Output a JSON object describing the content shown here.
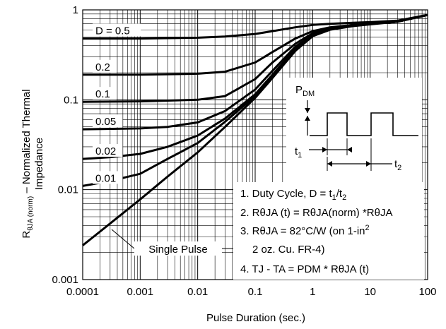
{
  "chart_data": {
    "type": "line",
    "xlabel": "Pulse Duration (sec.)",
    "ylabel_line1": "Normalized Thermal",
    "ylabel_line2": "Impedance",
    "x_scale": "log",
    "y_scale": "log",
    "xlim": [
      0.0001,
      100
    ],
    "ylim": [
      0.001,
      1
    ],
    "grid": true,
    "x_tick_labels": [
      "0.0001",
      "0.001",
      "0.01",
      "0.1",
      "1",
      "10",
      "100"
    ],
    "y_tick_labels": [
      "1",
      "0.1",
      "0.01",
      "0.001"
    ],
    "series": [
      {
        "name": "D = 0.5",
        "points": [
          [
            0.0001,
            0.48
          ],
          [
            0.001,
            0.48
          ],
          [
            0.01,
            0.49
          ],
          [
            0.03,
            0.505
          ],
          [
            0.1,
            0.54
          ],
          [
            0.2,
            0.58
          ],
          [
            0.5,
            0.64
          ],
          [
            1,
            0.68
          ],
          [
            2,
            0.7
          ],
          [
            5,
            0.72
          ],
          [
            10,
            0.73
          ],
          [
            30,
            0.76
          ],
          [
            100,
            0.88
          ]
        ]
      },
      {
        "name": "0.2",
        "points": [
          [
            0.0001,
            0.19
          ],
          [
            0.001,
            0.19
          ],
          [
            0.01,
            0.195
          ],
          [
            0.03,
            0.205
          ],
          [
            0.1,
            0.26
          ],
          [
            0.2,
            0.34
          ],
          [
            0.5,
            0.48
          ],
          [
            1,
            0.58
          ],
          [
            2,
            0.64
          ],
          [
            5,
            0.68
          ],
          [
            10,
            0.7
          ],
          [
            30,
            0.74
          ],
          [
            100,
            0.88
          ]
        ]
      },
      {
        "name": "0.1",
        "points": [
          [
            0.0001,
            0.095
          ],
          [
            0.001,
            0.096
          ],
          [
            0.01,
            0.1
          ],
          [
            0.03,
            0.11
          ],
          [
            0.1,
            0.17
          ],
          [
            0.2,
            0.26
          ],
          [
            0.5,
            0.42
          ],
          [
            1,
            0.55
          ],
          [
            2,
            0.63
          ],
          [
            5,
            0.68
          ],
          [
            10,
            0.7
          ],
          [
            30,
            0.74
          ],
          [
            100,
            0.88
          ]
        ]
      },
      {
        "name": "0.05",
        "points": [
          [
            0.0001,
            0.047
          ],
          [
            0.001,
            0.048
          ],
          [
            0.003,
            0.05
          ],
          [
            0.01,
            0.056
          ],
          [
            0.03,
            0.075
          ],
          [
            0.1,
            0.13
          ],
          [
            0.2,
            0.21
          ],
          [
            0.5,
            0.39
          ],
          [
            1,
            0.53
          ],
          [
            2,
            0.62
          ],
          [
            5,
            0.67
          ],
          [
            10,
            0.7
          ],
          [
            30,
            0.74
          ],
          [
            100,
            0.88
          ]
        ]
      },
      {
        "name": "0.02",
        "points": [
          [
            0.0001,
            0.022
          ],
          [
            0.0003,
            0.023
          ],
          [
            0.001,
            0.025
          ],
          [
            0.003,
            0.03
          ],
          [
            0.01,
            0.04
          ],
          [
            0.03,
            0.062
          ],
          [
            0.1,
            0.115
          ],
          [
            0.2,
            0.19
          ],
          [
            0.5,
            0.37
          ],
          [
            1,
            0.52
          ],
          [
            2,
            0.61
          ],
          [
            5,
            0.67
          ],
          [
            10,
            0.7
          ],
          [
            30,
            0.74
          ],
          [
            100,
            0.88
          ]
        ]
      },
      {
        "name": "0.01",
        "points": [
          [
            0.0001,
            0.011
          ],
          [
            0.0003,
            0.0125
          ],
          [
            0.001,
            0.015
          ],
          [
            0.003,
            0.022
          ],
          [
            0.01,
            0.033
          ],
          [
            0.03,
            0.057
          ],
          [
            0.1,
            0.11
          ],
          [
            0.2,
            0.18
          ],
          [
            0.5,
            0.36
          ],
          [
            1,
            0.52
          ],
          [
            2,
            0.61
          ],
          [
            5,
            0.67
          ],
          [
            10,
            0.7
          ],
          [
            30,
            0.74
          ],
          [
            100,
            0.88
          ]
        ]
      },
      {
        "name": "Single Pulse",
        "points": [
          [
            0.0001,
            0.0024
          ],
          [
            0.0003,
            0.0042
          ],
          [
            0.001,
            0.0078
          ],
          [
            0.003,
            0.014
          ],
          [
            0.01,
            0.026
          ],
          [
            0.03,
            0.05
          ],
          [
            0.1,
            0.105
          ],
          [
            0.2,
            0.175
          ],
          [
            0.5,
            0.35
          ],
          [
            1,
            0.51
          ],
          [
            2,
            0.6
          ],
          [
            5,
            0.66
          ],
          [
            10,
            0.69
          ],
          [
            30,
            0.74
          ],
          [
            100,
            0.88
          ]
        ]
      }
    ],
    "inset": {
      "p_label": "P",
      "p_sub": "DM",
      "t1_label": "t",
      "t1_sub": "1",
      "t2_label": "t",
      "t2_sub": "2"
    },
    "notes": {
      "n1_a": "1. Duty Cycle, D = t",
      "n1_sub": "1",
      "n1_b": "/t",
      "n1_sub2": "2",
      "n2": "2. RθJA (t) = RθJA(norm) *RθJA",
      "n3_a": "3. RθJA = 82°C/W (on 1-in",
      "n3_sup": "2",
      "n3_b": "2 oz. Cu. FR-4)",
      "n4": "4. TJ - TA = PDM * RθJA (t)"
    }
  }
}
